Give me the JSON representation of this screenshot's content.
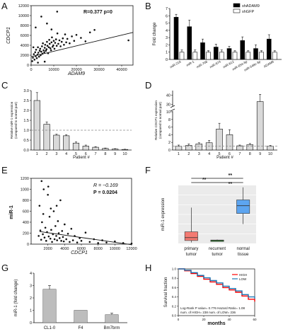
{
  "panels": {
    "A": {
      "label": "A"
    },
    "B": {
      "label": "B"
    },
    "C": {
      "label": "C"
    },
    "D": {
      "label": "D"
    },
    "E": {
      "label": "E"
    },
    "F": {
      "label": "F"
    },
    "G": {
      "label": "G"
    },
    "H": {
      "label": "H"
    }
  },
  "chart_data": [
    {
      "id": "A",
      "type": "scatter",
      "xlabel": "ADAM9",
      "ylabel": "CDCP1",
      "xlim": [
        0,
        45000
      ],
      "ylim": [
        0,
        12000
      ],
      "xticks": [
        "0",
        "10000",
        "20000",
        "30000",
        "40000"
      ],
      "yticks": [
        "0",
        "2000",
        "4000",
        "6000",
        "8000",
        "10000",
        "12000"
      ],
      "annotation": "R=0.377    p=0",
      "regression": {
        "x": [
          0,
          45000
        ],
        "y": [
          1700,
          6600
        ]
      },
      "points": [
        [
          500,
          800
        ],
        [
          800,
          1500
        ],
        [
          1200,
          2200
        ],
        [
          1500,
          1100
        ],
        [
          1800,
          2600
        ],
        [
          2000,
          1800
        ],
        [
          2200,
          3100
        ],
        [
          2500,
          1400
        ],
        [
          2800,
          2100
        ],
        [
          3000,
          3600
        ],
        [
          3200,
          2500
        ],
        [
          3500,
          1700
        ],
        [
          3800,
          2900
        ],
        [
          4000,
          3300
        ],
        [
          4200,
          2000
        ],
        [
          4500,
          2700
        ],
        [
          4800,
          3800
        ],
        [
          5000,
          2300
        ],
        [
          5200,
          4400
        ],
        [
          5500,
          3000
        ],
        [
          5800,
          2600
        ],
        [
          6000,
          3500
        ],
        [
          6200,
          4100
        ],
        [
          6500,
          2900
        ],
        [
          6800,
          3200
        ],
        [
          7000,
          4700
        ],
        [
          7200,
          3900
        ],
        [
          7500,
          2400
        ],
        [
          7800,
          3600
        ],
        [
          8000,
          5100
        ],
        [
          8200,
          4300
        ],
        [
          8500,
          3400
        ],
        [
          8800,
          3000
        ],
        [
          9000,
          4600
        ],
        [
          9200,
          5600
        ],
        [
          9500,
          3700
        ],
        [
          9800,
          4000
        ],
        [
          10000,
          4900
        ],
        [
          10300,
          3300
        ],
        [
          10600,
          4500
        ],
        [
          11000,
          5200
        ],
        [
          11300,
          3900
        ],
        [
          11600,
          6400
        ],
        [
          12000,
          4300
        ],
        [
          12500,
          5000
        ],
        [
          13000,
          3800
        ],
        [
          13500,
          4700
        ],
        [
          14000,
          5400
        ],
        [
          14500,
          4100
        ],
        [
          15000,
          6200
        ],
        [
          15500,
          4600
        ],
        [
          16000,
          5300
        ],
        [
          17000,
          4400
        ],
        [
          18000,
          5800
        ],
        [
          19000,
          4900
        ],
        [
          20000,
          6100
        ],
        [
          22000,
          5500
        ],
        [
          24000,
          4800
        ],
        [
          26000,
          6600
        ],
        [
          28000,
          7100
        ],
        [
          11500,
          10800
        ],
        [
          4500,
          9800
        ],
        [
          7000,
          8400
        ],
        [
          2000,
          7600
        ],
        [
          9000,
          7200
        ],
        [
          3000,
          500
        ],
        [
          6000,
          700
        ],
        [
          1000,
          3600
        ],
        [
          43000,
          5000
        ]
      ]
    },
    {
      "id": "B",
      "type": "bar",
      "ylabel": "Fold change",
      "ylim": [
        0,
        7
      ],
      "yticks": [
        "0",
        "1",
        "2",
        "3",
        "4",
        "5",
        "6",
        "7"
      ],
      "categories": [
        "miR-218",
        "miR-1",
        "miR-708",
        "miR-874",
        "miR-612",
        "miR-654-3p",
        "miR-548c-3p",
        "ADAM9"
      ],
      "series": [
        {
          "name": "shADAM9",
          "color": "#000000",
          "values": [
            5.8,
            4.5,
            2.3,
            1.7,
            1.5,
            2.6,
            1.5,
            2.8
          ],
          "errors": [
            0.4,
            0.9,
            0.5,
            0.4,
            0.3,
            0.5,
            0.5,
            0.6
          ]
        },
        {
          "name": "shGFP",
          "color": "#ffffff",
          "values": [
            1.0,
            1.0,
            1.0,
            1.0,
            1.0,
            1.0,
            1.0,
            1.0
          ],
          "errors": [
            0.3,
            0.3,
            0.2,
            0.3,
            0.2,
            0.2,
            0.2,
            0.2
          ]
        }
      ]
    },
    {
      "id": "C",
      "type": "bar",
      "ylabel": "Relative miR-1 expression (compared to normal part)",
      "xlabel": "Patient #",
      "ylim": [
        0,
        3.0
      ],
      "yticks": [
        "0.0",
        "0.5",
        "1.0",
        "1.5",
        "2.0",
        "2.5",
        "3.0"
      ],
      "categories": [
        "1",
        "2",
        "3",
        "4",
        "5",
        "6",
        "7",
        "8",
        "9",
        "10"
      ],
      "values": [
        2.5,
        1.3,
        0.75,
        0.72,
        0.35,
        0.2,
        0.14,
        0.08,
        0.05,
        0.03
      ],
      "errors": [
        0.4,
        0.12,
        0.05,
        0.05,
        0.06,
        0.05,
        0.03,
        0.02,
        0.02,
        0.01
      ],
      "reference_line": 1.0
    },
    {
      "id": "D",
      "type": "bar",
      "ylabel": "Relative CDCP1 expression (compared to normal part)",
      "xlabel": "Patient #",
      "yticks": [
        "0",
        "2",
        "4",
        "6",
        "8",
        "10",
        "30",
        "40"
      ],
      "categories": [
        "1",
        "2",
        "3",
        "4",
        "5",
        "6",
        "7",
        "8",
        "9",
        "10"
      ],
      "values": [
        1.0,
        1.2,
        1.6,
        1.9,
        5.5,
        4.0,
        1.1,
        1.4,
        33,
        1.0
      ],
      "errors": [
        0.3,
        0.4,
        0.3,
        0.6,
        1.5,
        1.3,
        0.2,
        0.3,
        8,
        0.2
      ],
      "reference_line": 1.0
    },
    {
      "id": "E",
      "type": "scatter",
      "xlabel": "CDCP1",
      "ylabel": "miR-1",
      "xlim": [
        0,
        12000
      ],
      "ylim": [
        0,
        1200
      ],
      "xticks": [
        "2000",
        "4000",
        "6000",
        "8000",
        "10000",
        "12000"
      ],
      "yticks": [
        "0",
        "200",
        "400",
        "600",
        "800",
        "1000",
        "1200"
      ],
      "annotation_r": "R = −0.169",
      "annotation_p": "P = 0.0204",
      "regression": {
        "x": [
          1000,
          12000
        ],
        "y": [
          230,
          -10
        ]
      },
      "points": [
        [
          900,
          150
        ],
        [
          1000,
          700
        ],
        [
          1100,
          250
        ],
        [
          1200,
          80
        ],
        [
          1300,
          400
        ],
        [
          1400,
          180
        ],
        [
          1500,
          1000
        ],
        [
          1600,
          120
        ],
        [
          1700,
          300
        ],
        [
          1800,
          60
        ],
        [
          1900,
          220
        ],
        [
          2000,
          900
        ],
        [
          2100,
          140
        ],
        [
          2200,
          500
        ],
        [
          2300,
          100
        ],
        [
          2400,
          260
        ],
        [
          2500,
          40
        ],
        [
          2600,
          180
        ],
        [
          2700,
          600
        ],
        [
          2800,
          90
        ],
        [
          2900,
          330
        ],
        [
          3000,
          150
        ],
        [
          3100,
          70
        ],
        [
          3200,
          420
        ],
        [
          3300,
          200
        ],
        [
          3400,
          110
        ],
        [
          3500,
          800
        ],
        [
          3600,
          60
        ],
        [
          3700,
          240
        ],
        [
          3800,
          130
        ],
        [
          3900,
          50
        ],
        [
          4000,
          360
        ],
        [
          4200,
          90
        ],
        [
          4400,
          190
        ],
        [
          4600,
          40
        ],
        [
          4800,
          280
        ],
        [
          5000,
          70
        ],
        [
          5200,
          150
        ],
        [
          5500,
          30
        ],
        [
          5800,
          110
        ],
        [
          6000,
          60
        ],
        [
          6500,
          210
        ],
        [
          7000,
          40
        ],
        [
          7500,
          90
        ],
        [
          8000,
          20
        ],
        [
          8500,
          70
        ],
        [
          9000,
          30
        ],
        [
          10000,
          50
        ],
        [
          11000,
          20
        ],
        [
          12000,
          10
        ],
        [
          1250,
          1150
        ],
        [
          2050,
          1050
        ],
        [
          1450,
          550
        ],
        [
          2350,
          650
        ],
        [
          3050,
          700
        ]
      ]
    },
    {
      "id": "F",
      "type": "box",
      "ylabel": "miR-1 expression",
      "categories": [
        "primary tumor",
        "recurrent tumor",
        "normal tissue"
      ],
      "significance": [
        "**",
        "**",
        "**"
      ],
      "boxes": [
        {
          "name": "primary tumor",
          "color": "#f47a72",
          "min": 1,
          "q1": 3,
          "median": 6,
          "q3": 12,
          "max": 37
        },
        {
          "name": "recurrent tumor",
          "color": "#2ca02c",
          "min": 2,
          "q1": 2.5,
          "median": 3,
          "q3": 3.5,
          "max": 4
        },
        {
          "name": "normal tissue",
          "color": "#5da5f0",
          "min": 20,
          "q1": 31,
          "median": 39,
          "q3": 45,
          "max": 58
        }
      ]
    },
    {
      "id": "G",
      "type": "bar",
      "ylabel": "miR-1 (fold change)",
      "ylim": [
        0,
        4
      ],
      "yticks": [
        "0",
        "1",
        "2",
        "3",
        "4"
      ],
      "categories": [
        "CL1-0",
        "F4",
        "Bm7brm"
      ],
      "values": [
        2.7,
        1.0,
        0.65
      ],
      "errors": [
        0.3,
        0.0,
        0.12
      ]
    },
    {
      "id": "H",
      "type": "line",
      "ylabel": "Survival fraction",
      "xlabel": "months",
      "xlim": [
        0,
        60
      ],
      "ylim": [
        0,
        1
      ],
      "xticks": [
        "0",
        "20",
        "40",
        "60"
      ],
      "yticks": [
        "0.0",
        "0.2",
        "0.4",
        "0.6",
        "0.8",
        "1.0"
      ],
      "series": [
        {
          "name": "HIGH",
          "color": "#ff0000",
          "x": [
            0,
            5,
            10,
            15,
            20,
            25,
            30,
            35,
            40,
            45,
            50,
            55,
            60
          ],
          "y": [
            1.0,
            0.96,
            0.9,
            0.84,
            0.78,
            0.72,
            0.67,
            0.6,
            0.55,
            0.5,
            0.42,
            0.35,
            0.3
          ]
        },
        {
          "name": "LOW",
          "color": "#1f77b4",
          "x": [
            0,
            5,
            10,
            15,
            20,
            25,
            30,
            35,
            40,
            45,
            50,
            55,
            60
          ],
          "y": [
            1.0,
            0.97,
            0.92,
            0.86,
            0.81,
            0.75,
            0.7,
            0.63,
            0.58,
            0.53,
            0.45,
            0.4,
            0.36
          ]
        }
      ],
      "stats": "Log-Rank P value= 0.776  Hazard Ratio= 1.08",
      "counts": "num. of HIGH= 238  num. of LOW= 236"
    }
  ]
}
